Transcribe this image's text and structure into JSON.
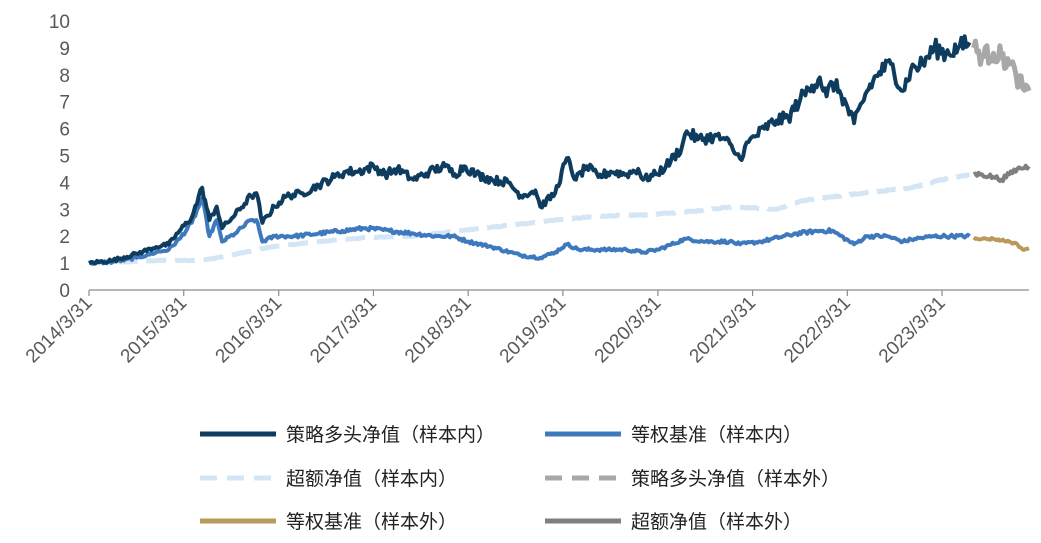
{
  "chart_data": {
    "type": "line",
    "title": "",
    "xlabel": "",
    "ylabel": "",
    "ylim": [
      0,
      10
    ],
    "y_ticks": [
      "0",
      "1",
      "2",
      "3",
      "4",
      "5",
      "6",
      "7",
      "8",
      "9",
      "10"
    ],
    "x_tick_labels": [
      "2014/3/31",
      "2015/3/31",
      "2016/3/31",
      "2017/3/31",
      "2018/3/31",
      "2019/3/31",
      "2020/3/31",
      "2021/3/31",
      "2022/3/31",
      "2023/3/31"
    ],
    "x_range": [
      "2014-03-31",
      "2024-02-29"
    ],
    "grid": false,
    "legend_position": "bottom",
    "series": [
      {
        "name": "策略多头净值（样本内）",
        "color": "#0d3c5f",
        "style": "solid",
        "points": [
          [
            "2014-03-31",
            1.0
          ],
          [
            "2014-07-01",
            1.1
          ],
          [
            "2014-10-01",
            1.35
          ],
          [
            "2014-12-15",
            1.6
          ],
          [
            "2015-02-01",
            1.7
          ],
          [
            "2015-03-15",
            2.2
          ],
          [
            "2015-05-01",
            2.7
          ],
          [
            "2015-06-10",
            3.8
          ],
          [
            "2015-07-08",
            2.6
          ],
          [
            "2015-08-05",
            3.1
          ],
          [
            "2015-08-26",
            2.3
          ],
          [
            "2015-10-15",
            2.8
          ],
          [
            "2015-12-15",
            3.5
          ],
          [
            "2016-01-05",
            3.6
          ],
          [
            "2016-01-28",
            2.5
          ],
          [
            "2016-03-15",
            3.1
          ],
          [
            "2016-05-01",
            3.5
          ],
          [
            "2016-07-01",
            3.6
          ],
          [
            "2016-09-01",
            3.9
          ],
          [
            "2016-11-01",
            4.2
          ],
          [
            "2016-12-15",
            4.4
          ],
          [
            "2017-02-01",
            4.4
          ],
          [
            "2017-04-01",
            4.6
          ],
          [
            "2017-05-15",
            4.3
          ],
          [
            "2017-07-01",
            4.5
          ],
          [
            "2017-09-01",
            4.1
          ],
          [
            "2017-11-01",
            4.4
          ],
          [
            "2018-01-01",
            4.6
          ],
          [
            "2018-02-08",
            4.3
          ],
          [
            "2018-03-15",
            4.6
          ],
          [
            "2018-05-01",
            4.3
          ],
          [
            "2018-07-01",
            4.1
          ],
          [
            "2018-09-01",
            4.0
          ],
          [
            "2018-10-20",
            3.5
          ],
          [
            "2018-12-15",
            3.7
          ],
          [
            "2019-01-03",
            3.1
          ],
          [
            "2019-03-01",
            3.6
          ],
          [
            "2019-04-15",
            4.9
          ],
          [
            "2019-05-20",
            4.1
          ],
          [
            "2019-07-01",
            4.6
          ],
          [
            "2019-08-15",
            4.2
          ],
          [
            "2019-10-01",
            4.4
          ],
          [
            "2019-12-01",
            4.3
          ],
          [
            "2020-01-15",
            4.5
          ],
          [
            "2020-02-03",
            4.1
          ],
          [
            "2020-03-23",
            4.3
          ],
          [
            "2020-05-01",
            4.6
          ],
          [
            "2020-07-01",
            5.3
          ],
          [
            "2020-07-20",
            5.9
          ],
          [
            "2020-09-01",
            5.6
          ],
          [
            "2020-11-01",
            5.7
          ],
          [
            "2020-12-15",
            5.6
          ],
          [
            "2021-01-15",
            5.2
          ],
          [
            "2021-02-10",
            4.9
          ],
          [
            "2021-03-15",
            5.5
          ],
          [
            "2021-05-15",
            6.0
          ],
          [
            "2021-07-01",
            6.3
          ],
          [
            "2021-08-15",
            6.4
          ],
          [
            "2021-10-01",
            7.1
          ],
          [
            "2021-11-15",
            7.6
          ],
          [
            "2021-12-15",
            7.9
          ],
          [
            "2022-01-10",
            7.2
          ],
          [
            "2022-02-01",
            7.7
          ],
          [
            "2022-03-01",
            7.4
          ],
          [
            "2022-04-26",
            6.2
          ],
          [
            "2022-06-15",
            7.4
          ],
          [
            "2022-08-01",
            8.1
          ],
          [
            "2022-09-15",
            8.4
          ],
          [
            "2022-10-31",
            7.4
          ],
          [
            "2022-12-01",
            8.2
          ],
          [
            "2023-01-15",
            8.4
          ],
          [
            "2023-03-01",
            9.0
          ],
          [
            "2023-04-15",
            8.8
          ],
          [
            "2023-06-01",
            9.0
          ],
          [
            "2023-07-15",
            9.2
          ]
        ]
      },
      {
        "name": "等权基准（样本内）",
        "color": "#3f79bd",
        "style": "solid",
        "points": [
          [
            "2014-03-31",
            1.0
          ],
          [
            "2014-07-01",
            1.05
          ],
          [
            "2014-10-01",
            1.2
          ],
          [
            "2014-12-15",
            1.4
          ],
          [
            "2015-02-01",
            1.5
          ],
          [
            "2015-03-15",
            1.9
          ],
          [
            "2015-05-01",
            2.5
          ],
          [
            "2015-06-10",
            3.4
          ],
          [
            "2015-07-08",
            2.0
          ],
          [
            "2015-08-05",
            2.6
          ],
          [
            "2015-08-26",
            1.8
          ],
          [
            "2015-10-15",
            2.1
          ],
          [
            "2015-12-15",
            2.6
          ],
          [
            "2016-01-05",
            2.6
          ],
          [
            "2016-01-28",
            1.8
          ],
          [
            "2016-03-15",
            2.0
          ],
          [
            "2016-06-01",
            2.0
          ],
          [
            "2016-09-01",
            2.1
          ],
          [
            "2016-12-01",
            2.2
          ],
          [
            "2017-03-01",
            2.3
          ],
          [
            "2017-06-01",
            2.2
          ],
          [
            "2017-09-01",
            2.1
          ],
          [
            "2017-12-01",
            2.0
          ],
          [
            "2018-02-01",
            2.0
          ],
          [
            "2018-04-01",
            1.8
          ],
          [
            "2018-07-01",
            1.6
          ],
          [
            "2018-10-15",
            1.3
          ],
          [
            "2019-01-03",
            1.2
          ],
          [
            "2019-03-01",
            1.4
          ],
          [
            "2019-04-15",
            1.7
          ],
          [
            "2019-06-01",
            1.5
          ],
          [
            "2019-09-01",
            1.5
          ],
          [
            "2019-12-01",
            1.5
          ],
          [
            "2020-02-03",
            1.4
          ],
          [
            "2020-04-01",
            1.5
          ],
          [
            "2020-07-15",
            1.9
          ],
          [
            "2020-10-01",
            1.8
          ],
          [
            "2021-01-01",
            1.8
          ],
          [
            "2021-02-10",
            1.7
          ],
          [
            "2021-05-01",
            1.8
          ],
          [
            "2021-09-15",
            2.1
          ],
          [
            "2021-12-15",
            2.2
          ],
          [
            "2022-02-01",
            2.2
          ],
          [
            "2022-04-26",
            1.7
          ],
          [
            "2022-06-15",
            2.0
          ],
          [
            "2022-09-01",
            2.0
          ],
          [
            "2022-10-31",
            1.8
          ],
          [
            "2022-12-15",
            1.9
          ],
          [
            "2023-03-01",
            2.0
          ],
          [
            "2023-05-01",
            2.0
          ],
          [
            "2023-07-15",
            2.0
          ]
        ]
      },
      {
        "name": "超额净值（样本内）",
        "color": "#d4e5f5",
        "style": "dashed",
        "points": [
          [
            "2014-03-31",
            1.0
          ],
          [
            "2014-09-01",
            1.05
          ],
          [
            "2015-01-01",
            1.1
          ],
          [
            "2015-06-10",
            1.1
          ],
          [
            "2015-10-01",
            1.3
          ],
          [
            "2016-03-01",
            1.6
          ],
          [
            "2016-09-01",
            1.8
          ],
          [
            "2017-03-01",
            1.95
          ],
          [
            "2017-09-01",
            2.0
          ],
          [
            "2018-03-01",
            2.2
          ],
          [
            "2018-09-01",
            2.4
          ],
          [
            "2019-03-01",
            2.6
          ],
          [
            "2019-09-01",
            2.75
          ],
          [
            "2020-03-01",
            2.8
          ],
          [
            "2020-09-01",
            2.95
          ],
          [
            "2021-01-15",
            3.1
          ],
          [
            "2021-04-01",
            3.05
          ],
          [
            "2021-07-01",
            3.0
          ],
          [
            "2021-10-01",
            3.3
          ],
          [
            "2022-01-15",
            3.45
          ],
          [
            "2022-06-01",
            3.6
          ],
          [
            "2022-12-01",
            3.8
          ],
          [
            "2023-04-01",
            4.1
          ],
          [
            "2023-07-15",
            4.3
          ]
        ]
      },
      {
        "name": "策略多头净值（样本外）",
        "color": "#a8a8a8",
        "style": "dashed",
        "points": [
          [
            "2023-07-31",
            9.0
          ],
          [
            "2023-09-01",
            8.7
          ],
          [
            "2023-10-15",
            8.8
          ],
          [
            "2023-11-15",
            8.7
          ],
          [
            "2023-12-15",
            8.4
          ],
          [
            "2024-01-10",
            8.0
          ],
          [
            "2024-02-05",
            7.5
          ],
          [
            "2024-02-29",
            7.4
          ]
        ]
      },
      {
        "name": "等权基准（样本外）",
        "color": "#b89a5a",
        "style": "solid",
        "points": [
          [
            "2023-07-31",
            1.95
          ],
          [
            "2023-09-01",
            1.9
          ],
          [
            "2023-10-15",
            1.9
          ],
          [
            "2023-11-15",
            1.85
          ],
          [
            "2023-12-15",
            1.8
          ],
          [
            "2024-01-15",
            1.7
          ],
          [
            "2024-02-05",
            1.5
          ],
          [
            "2024-02-29",
            1.55
          ]
        ]
      },
      {
        "name": "超额净值（样本外）",
        "color": "#7f7f7f",
        "style": "solid",
        "points": [
          [
            "2023-07-31",
            4.3
          ],
          [
            "2023-09-01",
            4.3
          ],
          [
            "2023-10-15",
            4.2
          ],
          [
            "2023-11-15",
            4.1
          ],
          [
            "2023-12-15",
            4.3
          ],
          [
            "2024-01-15",
            4.5
          ],
          [
            "2024-02-29",
            4.6
          ]
        ]
      }
    ]
  }
}
